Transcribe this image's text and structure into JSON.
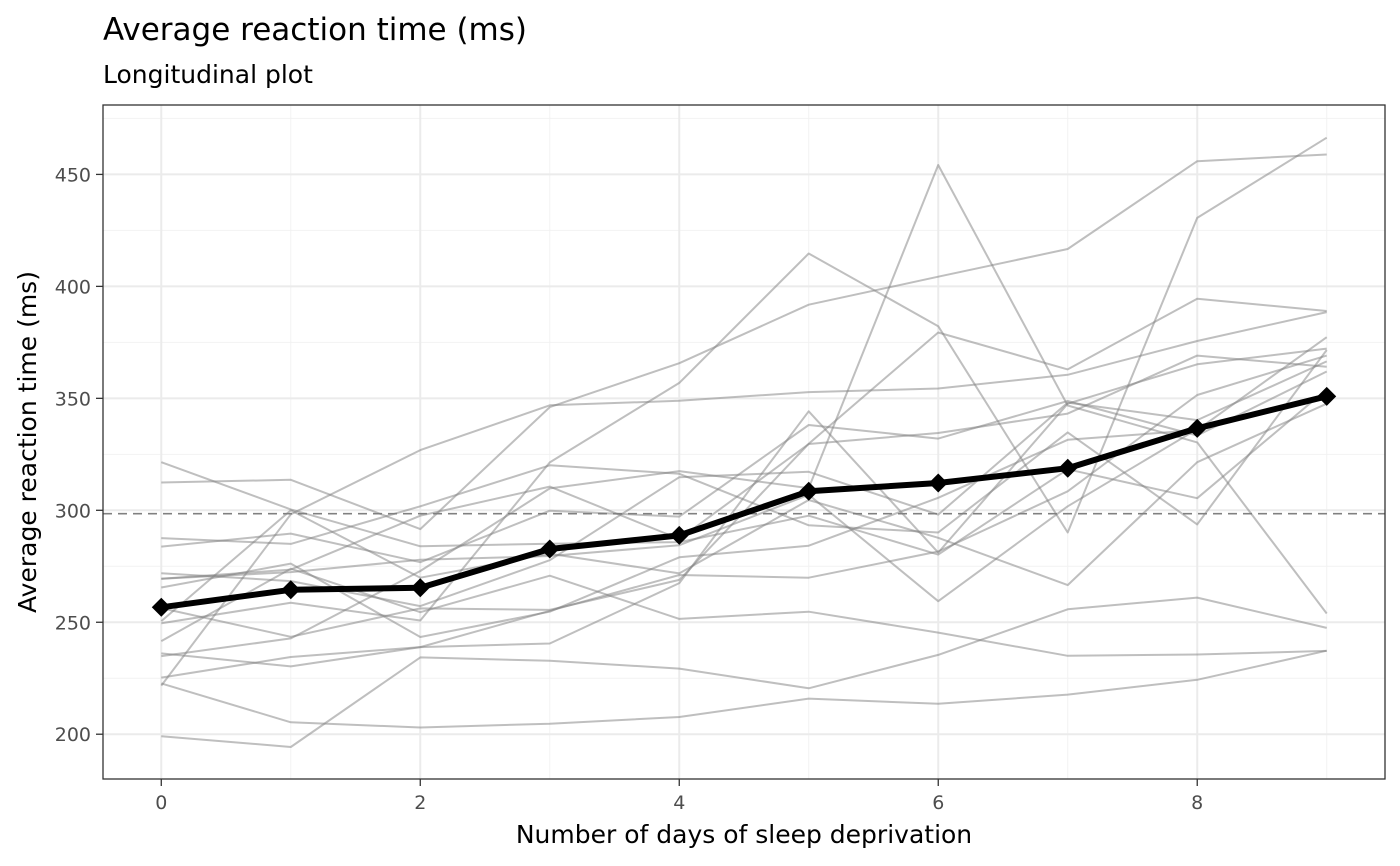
{
  "chart_data": {
    "type": "line",
    "title": "Average reaction time (ms)",
    "subtitle": "Longitudinal plot",
    "xlabel": "Number of days of sleep deprivation",
    "ylabel": "Average reaction time (ms)",
    "xlim": [
      -0.45,
      9.45
    ],
    "ylim": [
      180,
      481
    ],
    "x_ticks": [
      0,
      2,
      4,
      6,
      8
    ],
    "y_ticks": [
      200,
      250,
      300,
      350,
      400,
      450
    ],
    "grid": true,
    "legend": "none",
    "reference_line": {
      "y": 298.5,
      "style": "dashed",
      "color": "#808080"
    },
    "x": [
      0,
      1,
      2,
      3,
      4,
      5,
      6,
      7,
      8,
      9
    ],
    "subjects_color": "#808080",
    "mean_color": "#000000",
    "subjects": [
      [
        249.6,
        258.7,
        250.8,
        321.4,
        356.9,
        414.7,
        382.2,
        290.1,
        430.6,
        466.4
      ],
      [
        222.7,
        205.3,
        203.0,
        204.7,
        207.7,
        215.9,
        213.6,
        217.7,
        224.3,
        237.3
      ],
      [
        199.1,
        194.3,
        234.3,
        232.8,
        229.3,
        220.5,
        235.4,
        255.8,
        261.0,
        247.5
      ],
      [
        321.5,
        300.4,
        283.9,
        285.1,
        285.8,
        297.6,
        280.2,
        318.3,
        305.4,
        354.0
      ],
      [
        287.6,
        285.0,
        301.8,
        320.1,
        316.3,
        293.3,
        290.1,
        334.8,
        293.7,
        371.6
      ],
      [
        234.9,
        242.8,
        272.9,
        309.8,
        317.5,
        309.9,
        454.2,
        346.8,
        330.3,
        253.9
      ],
      [
        283.8,
        289.6,
        276.8,
        299.8,
        297.2,
        338.1,
        332.0,
        348.8,
        333.4,
        362.0
      ],
      [
        265.5,
        276.2,
        243.4,
        254.7,
        279.0,
        284.2,
        305.6,
        331.5,
        335.8,
        377.3
      ],
      [
        241.6,
        273.9,
        254.5,
        270.8,
        251.5,
        254.7,
        245.4,
        235.0,
        235.6,
        237.2
      ],
      [
        312.4,
        313.6,
        291.6,
        346.1,
        365.7,
        391.8,
        404.3,
        416.7,
        455.9,
        458.9
      ],
      [
        236.1,
        230.3,
        238.9,
        240.5,
        267.5,
        344.2,
        281.1,
        347.6,
        365.2,
        372.2
      ],
      [
        256.3,
        243.5,
        256.2,
        255.5,
        268.9,
        329.7,
        379.4,
        362.9,
        394.5,
        389.0
      ],
      [
        250.5,
        300.0,
        269.9,
        280.6,
        271.8,
        304.6,
        287.7,
        266.6,
        321.5,
        347.6
      ],
      [
        221.7,
        298.2,
        326.9,
        346.9,
        348.9,
        352.8,
        354.4,
        360.5,
        375.6,
        388.5
      ],
      [
        271.9,
        268.4,
        257.2,
        277.7,
        314.8,
        317.2,
        298.1,
        348.1,
        340.3,
        366.5
      ],
      [
        225.3,
        234.5,
        238.9,
        255.1,
        271.1,
        269.9,
        281.6,
        308.5,
        351.5,
        369.1
      ],
      [
        269.4,
        273.5,
        297.6,
        310.6,
        287.2,
        329.6,
        334.5,
        343.2,
        369.1,
        364.1
      ],
      [
        269.4,
        272.4,
        277.9,
        279.6,
        284.4,
        306.9,
        259.4,
        301.8,
        336.2,
        351.5
      ]
    ],
    "mean": [
      256.7,
      264.5,
      265.4,
      282.7,
      288.8,
      308.5,
      312.2,
      318.8,
      336.6,
      350.9
    ]
  }
}
